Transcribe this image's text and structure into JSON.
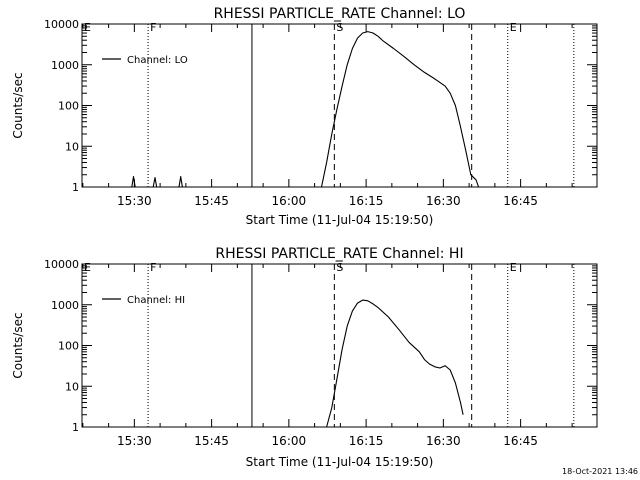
{
  "footer": {
    "timestamp": "18-Oct-2021 13:46"
  },
  "chart_data": [
    {
      "type": "line",
      "title": "RHESSI PARTICLE_RATE Channel: LO",
      "xlabel": "Start Time (11-Jul-04 15:19:50)",
      "ylabel": "Counts/sec",
      "yscale": "log",
      "xlim": [
        "15:19:50",
        "16:59:50"
      ],
      "ylim": [
        1,
        10000
      ],
      "x_ticks": [
        "15:30",
        "15:45",
        "16:00",
        "16:15",
        "16:30",
        "16:45"
      ],
      "y_ticks": [
        "1",
        "10",
        "100",
        "1000",
        "10000"
      ],
      "grid": false,
      "legend": {
        "position": "top-left",
        "label": "Channel: LO"
      },
      "markers": [
        {
          "time": "15:19:50",
          "label": "E",
          "style": "dotted"
        },
        {
          "time": "15:32:40",
          "label": "F",
          "style": "dotted"
        },
        {
          "time": "15:52:50",
          "label": "",
          "style": "solid"
        },
        {
          "time": "16:08:50",
          "label": "S",
          "style": "dashed"
        },
        {
          "time": "16:35:30",
          "label": "",
          "style": "dashed"
        },
        {
          "time": "16:42:30",
          "label": "E",
          "style": "dotted"
        },
        {
          "time": "16:55:20",
          "label": "",
          "style": "dotted"
        }
      ],
      "series": [
        {
          "name": "Channel: LO",
          "points": [
            [
              "15:29:30",
              1
            ],
            [
              "15:29:50",
              1.8
            ],
            [
              "15:30:10",
              1
            ],
            [
              "15:33:40",
              1
            ],
            [
              "15:34:00",
              1.7
            ],
            [
              "15:34:20",
              1
            ],
            [
              "15:38:40",
              1
            ],
            [
              "15:39:00",
              1.8
            ],
            [
              "15:39:20",
              1
            ],
            [
              "16:06:20",
              1
            ],
            [
              "16:07:20",
              4
            ],
            [
              "16:08:20",
              20
            ],
            [
              "16:09:20",
              80
            ],
            [
              "16:10:20",
              300
            ],
            [
              "16:11:20",
              1000
            ],
            [
              "16:12:20",
              2500
            ],
            [
              "16:13:20",
              4500
            ],
            [
              "16:14:20",
              6000
            ],
            [
              "16:15:20",
              6500
            ],
            [
              "16:16:20",
              6000
            ],
            [
              "16:17:20",
              5000
            ],
            [
              "16:18:20",
              3800
            ],
            [
              "16:20:20",
              2500
            ],
            [
              "16:22:20",
              1600
            ],
            [
              "16:24:20",
              1000
            ],
            [
              "16:26:20",
              650
            ],
            [
              "16:28:20",
              450
            ],
            [
              "16:30:20",
              300
            ],
            [
              "16:31:20",
              200
            ],
            [
              "16:32:20",
              100
            ],
            [
              "16:33:20",
              30
            ],
            [
              "16:34:20",
              8
            ],
            [
              "16:35:20",
              2
            ],
            [
              "16:36:20",
              1.5
            ],
            [
              "16:36:50",
              1
            ]
          ]
        }
      ]
    },
    {
      "type": "line",
      "title": "RHESSI PARTICLE_RATE Channel: HI",
      "xlabel": "Start Time (11-Jul-04 15:19:50)",
      "ylabel": "Counts/sec",
      "yscale": "log",
      "xlim": [
        "15:19:50",
        "16:59:50"
      ],
      "ylim": [
        1,
        10000
      ],
      "x_ticks": [
        "15:30",
        "15:45",
        "16:00",
        "16:15",
        "16:30",
        "16:45"
      ],
      "y_ticks": [
        "1",
        "10",
        "100",
        "1000",
        "10000"
      ],
      "grid": false,
      "legend": {
        "position": "top-left",
        "label": "Channel: HI"
      },
      "markers": [
        {
          "time": "15:19:50",
          "label": "E",
          "style": "dotted"
        },
        {
          "time": "15:32:40",
          "label": "F",
          "style": "dotted"
        },
        {
          "time": "15:52:50",
          "label": "",
          "style": "solid"
        },
        {
          "time": "16:08:50",
          "label": "S",
          "style": "dashed"
        },
        {
          "time": "16:35:30",
          "label": "",
          "style": "dashed"
        },
        {
          "time": "16:42:30",
          "label": "E",
          "style": "dotted"
        },
        {
          "time": "16:55:20",
          "label": "",
          "style": "dotted"
        }
      ],
      "series": [
        {
          "name": "Channel: HI",
          "points": [
            [
              "16:07:20",
              1
            ],
            [
              "16:08:20",
              3
            ],
            [
              "16:09:20",
              15
            ],
            [
              "16:10:20",
              80
            ],
            [
              "16:11:20",
              300
            ],
            [
              "16:12:20",
              700
            ],
            [
              "16:13:20",
              1100
            ],
            [
              "16:14:20",
              1300
            ],
            [
              "16:15:20",
              1250
            ],
            [
              "16:16:20",
              1050
            ],
            [
              "16:17:20",
              850
            ],
            [
              "16:19:20",
              500
            ],
            [
              "16:21:20",
              250
            ],
            [
              "16:23:20",
              120
            ],
            [
              "16:25:20",
              70
            ],
            [
              "16:26:20",
              45
            ],
            [
              "16:27:20",
              35
            ],
            [
              "16:28:20",
              30
            ],
            [
              "16:29:20",
              28
            ],
            [
              "16:30:20",
              32
            ],
            [
              "16:31:20",
              25
            ],
            [
              "16:32:20",
              12
            ],
            [
              "16:33:20",
              4
            ],
            [
              "16:33:50",
              2
            ]
          ]
        }
      ]
    }
  ]
}
